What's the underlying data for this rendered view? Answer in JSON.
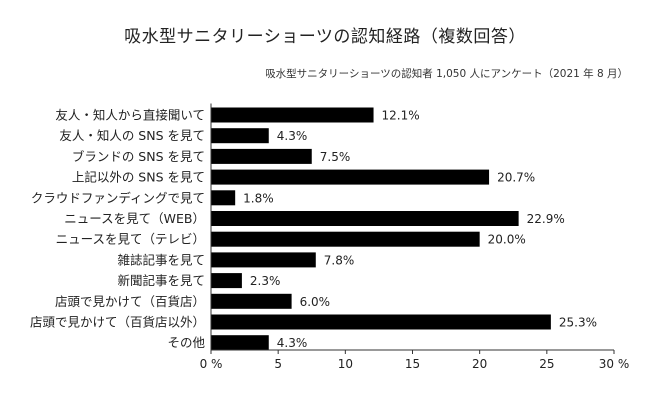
{
  "chart_data": {
    "type": "bar",
    "orientation": "horizontal",
    "title": "吸水型サニタリーショーツの認知経路（複数回答）",
    "subtitle": "吸水型サニタリーショーツの認知者 1,050 人にアンケート（2021 年 8 月）",
    "categories": [
      "友人・知人から直接聞いて",
      "友人・知人の SNS を見て",
      "ブランドの SNS を見て",
      "上記以外の SNS を見て",
      "クラウドファンディングで見て",
      "ニュースを見て（WEB）",
      "ニュースを見て（テレビ）",
      "雑誌記事を見て",
      "新聞記事を見て",
      "店頭で見かけて（百貨店）",
      "店頭で見かけて（百貨店以外）",
      "その他"
    ],
    "values": [
      12.1,
      4.3,
      7.5,
      20.7,
      1.8,
      22.9,
      20.0,
      7.8,
      2.3,
      6.0,
      25.3,
      4.3
    ],
    "value_labels": [
      "12.1%",
      "4.3%",
      "7.5%",
      "20.7%",
      "1.8%",
      "22.9%",
      "20.0%",
      "7.8%",
      "2.3%",
      "6.0%",
      "25.3%",
      "4.3%"
    ],
    "xlim": [
      0,
      30
    ],
    "x_ticks": [
      0,
      5,
      10,
      15,
      20,
      25,
      30
    ],
    "x_tick_labels": [
      "0 %",
      "5",
      "10",
      "15",
      "20",
      "25",
      "30 %"
    ],
    "grid": false,
    "colors": {
      "bar": "#000000",
      "axis": "#333333",
      "text": "#222222"
    }
  }
}
